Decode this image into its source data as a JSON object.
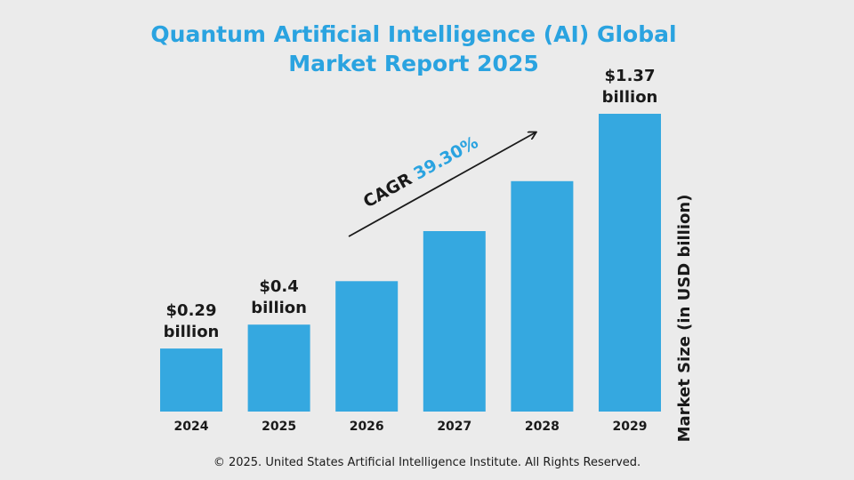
{
  "chart_data": {
    "type": "bar",
    "title_lines": [
      "Quantum Artificial Intelligence (AI) Global",
      "Market Report 2025"
    ],
    "categories": [
      "2024",
      "2025",
      "2026",
      "2027",
      "2028",
      "2029"
    ],
    "values": [
      0.29,
      0.4,
      0.6,
      0.83,
      1.06,
      1.37
    ],
    "value_labels": [
      {
        "amount": "$0.29",
        "unit": "billion"
      },
      {
        "amount": "$0.4",
        "unit": "billion"
      },
      null,
      null,
      null,
      {
        "amount": "$1.37",
        "unit": "billion"
      }
    ],
    "ylabel": "Market Size (in USD billion)",
    "xlabel": "",
    "ylim": [
      0,
      1.37
    ],
    "grid": false,
    "legend": "none",
    "annotation": {
      "prefix": "CAGR",
      "value": "39.30%"
    }
  },
  "footer": {
    "copyright": "© 2025. United States Artificial Intelligence Institute. All Rights Reserved."
  },
  "colors": {
    "bar": "#35a8e0",
    "title": "#2aa3e0",
    "background": "#ebebeb",
    "text": "#1a1a1a",
    "arrow": "#1a1a1a"
  }
}
